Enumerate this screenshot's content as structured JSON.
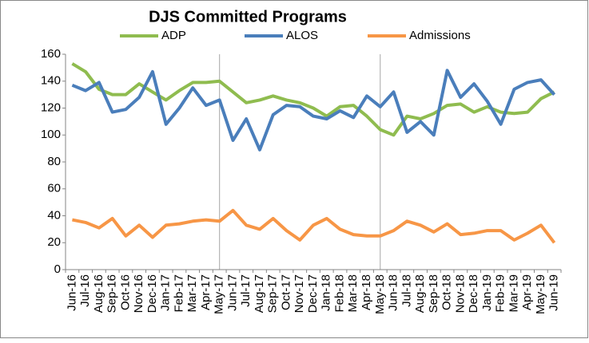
{
  "chart_data": {
    "type": "line",
    "title": "DJS Committed Programs",
    "categories": [
      "Jun-16",
      "Jul-16",
      "Aug-16",
      "Sep-16",
      "Oct-16",
      "Nov-16",
      "Dec-16",
      "Jan-17",
      "Feb-17",
      "Mar-17",
      "Apr-17",
      "May-17",
      "Jun-17",
      "Jul-17",
      "Aug-17",
      "Sep-17",
      "Oct-17",
      "Nov-17",
      "Dec-17",
      "Jan-18",
      "Feb-18",
      "Mar-18",
      "Apr-18",
      "May-18",
      "Jun-18",
      "Jul-18",
      "Aug-18",
      "Sep-18",
      "Oct-18",
      "Nov-18",
      "Dec-18",
      "Jan-19",
      "Feb-19",
      "Mar-19",
      "Apr-19",
      "May-19",
      "Jun-19"
    ],
    "series": [
      {
        "name": "ADP",
        "color": "#8fbc4f",
        "values": [
          153,
          147,
          134,
          130,
          130,
          138,
          132,
          126,
          133,
          139,
          139,
          140,
          132,
          124,
          126,
          129,
          126,
          124,
          120,
          114,
          121,
          122,
          114,
          104,
          100,
          114,
          112,
          116,
          122,
          123,
          117,
          121,
          117,
          116,
          117,
          127,
          132
        ]
      },
      {
        "name": "ALOS",
        "color": "#4a7ebb",
        "values": [
          137,
          133,
          139,
          117,
          119,
          128,
          147,
          108,
          120,
          135,
          122,
          126,
          96,
          112,
          89,
          115,
          122,
          121,
          114,
          112,
          118,
          113,
          129,
          121,
          132,
          102,
          110,
          100,
          148,
          128,
          138,
          125,
          108,
          134,
          139,
          141,
          130
        ]
      },
      {
        "name": "Admissions",
        "color": "#f79646",
        "values": [
          37,
          35,
          31,
          38,
          25,
          33,
          24,
          33,
          34,
          36,
          37,
          36,
          44,
          33,
          30,
          38,
          29,
          22,
          33,
          38,
          30,
          26,
          25,
          25,
          29,
          36,
          33,
          28,
          34,
          26,
          27,
          29,
          29,
          22,
          27,
          33,
          20
        ]
      }
    ],
    "ylim": [
      0,
      160
    ],
    "yticks": [
      0,
      20,
      40,
      60,
      80,
      100,
      120,
      140,
      160
    ],
    "grid": false,
    "legend": "top"
  }
}
